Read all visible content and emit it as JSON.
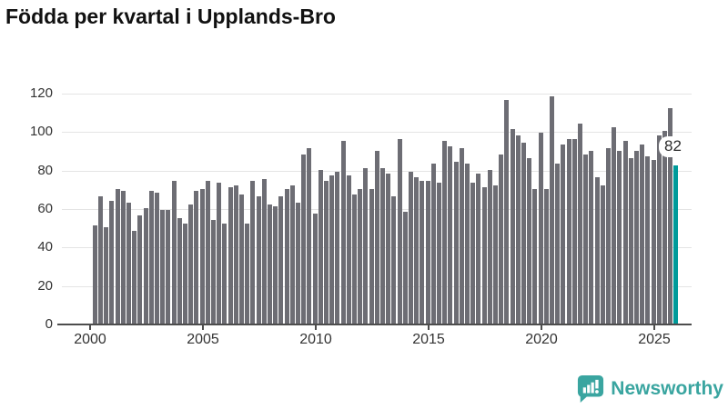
{
  "title": "Födda per kvartal i Upplands-Bro",
  "chart_data": {
    "type": "bar",
    "title": "Födda per kvartal i Upplands-Bro",
    "xlabel": "",
    "ylabel": "",
    "ylim": [
      0,
      120
    ],
    "grid": "horizontal",
    "legend": "none",
    "y_ticks": [
      0,
      20,
      40,
      60,
      80,
      100,
      120
    ],
    "x_tick_labels": [
      "2000",
      "2005",
      "2010",
      "2015",
      "2020",
      "2025"
    ],
    "x_tick_bar_indices": [
      0,
      20,
      40,
      60,
      80,
      100
    ],
    "bar_color": "#6d6d74",
    "highlight_color": "#009a9a",
    "highlight_index": 103,
    "highlight_value_label": "82",
    "categories": [
      "2000K1",
      "2000K2",
      "2000K3",
      "2000K4",
      "2001K1",
      "2001K2",
      "2001K3",
      "2001K4",
      "2002K1",
      "2002K2",
      "2002K3",
      "2002K4",
      "2003K1",
      "2003K2",
      "2003K3",
      "2003K4",
      "2004K1",
      "2004K2",
      "2004K3",
      "2004K4",
      "2005K1",
      "2005K2",
      "2005K3",
      "2005K4",
      "2006K1",
      "2006K2",
      "2006K3",
      "2006K4",
      "2007K1",
      "2007K2",
      "2007K3",
      "2007K4",
      "2008K1",
      "2008K2",
      "2008K3",
      "2008K4",
      "2009K1",
      "2009K2",
      "2009K3",
      "2009K4",
      "2010K1",
      "2010K2",
      "2010K3",
      "2010K4",
      "2011K1",
      "2011K2",
      "2011K3",
      "2011K4",
      "2012K1",
      "2012K2",
      "2012K3",
      "2012K4",
      "2013K1",
      "2013K2",
      "2013K3",
      "2013K4",
      "2014K1",
      "2014K2",
      "2014K3",
      "2014K4",
      "2015K1",
      "2015K2",
      "2015K3",
      "2015K4",
      "2016K1",
      "2016K2",
      "2016K3",
      "2016K4",
      "2017K1",
      "2017K2",
      "2017K3",
      "2017K4",
      "2018K1",
      "2018K2",
      "2018K3",
      "2018K4",
      "2019K1",
      "2019K2",
      "2019K3",
      "2019K4",
      "2020K1",
      "2020K2",
      "2020K3",
      "2020K4",
      "2021K1",
      "2021K2",
      "2021K3",
      "2021K4",
      "2022K1",
      "2022K2",
      "2022K3",
      "2022K4",
      "2023K1",
      "2023K2",
      "2023K3",
      "2023K4",
      "2024K1",
      "2024K2",
      "2024K3",
      "2024K4",
      "2025K1",
      "2025K2",
      "2025K3",
      "2025K4"
    ],
    "series": [
      {
        "name": "Födda",
        "values": [
          51,
          66,
          50,
          64,
          70,
          69,
          63,
          48,
          56,
          60,
          69,
          68,
          59,
          59,
          74,
          55,
          52,
          62,
          69,
          70,
          74,
          54,
          73,
          52,
          71,
          72,
          67,
          52,
          74,
          66,
          75,
          62,
          61,
          66,
          70,
          72,
          63,
          88,
          91,
          57,
          80,
          74,
          77,
          79,
          95,
          77,
          67,
          70,
          81,
          70,
          90,
          81,
          78,
          66,
          96,
          58,
          79,
          76,
          74,
          74,
          83,
          73,
          95,
          92,
          84,
          91,
          83,
          73,
          78,
          71,
          80,
          72,
          88,
          116,
          101,
          98,
          94,
          86,
          70,
          99,
          70,
          118,
          83,
          93,
          96,
          96,
          104,
          88,
          90,
          76,
          72,
          91,
          102,
          90,
          95,
          86,
          90,
          93,
          87,
          85,
          98,
          100,
          112,
          82
        ]
      }
    ]
  },
  "annotation": {
    "last_value_label": "82"
  },
  "branding": {
    "logo_text": "Newsworthy",
    "logo_color": "#3aa5a0"
  }
}
